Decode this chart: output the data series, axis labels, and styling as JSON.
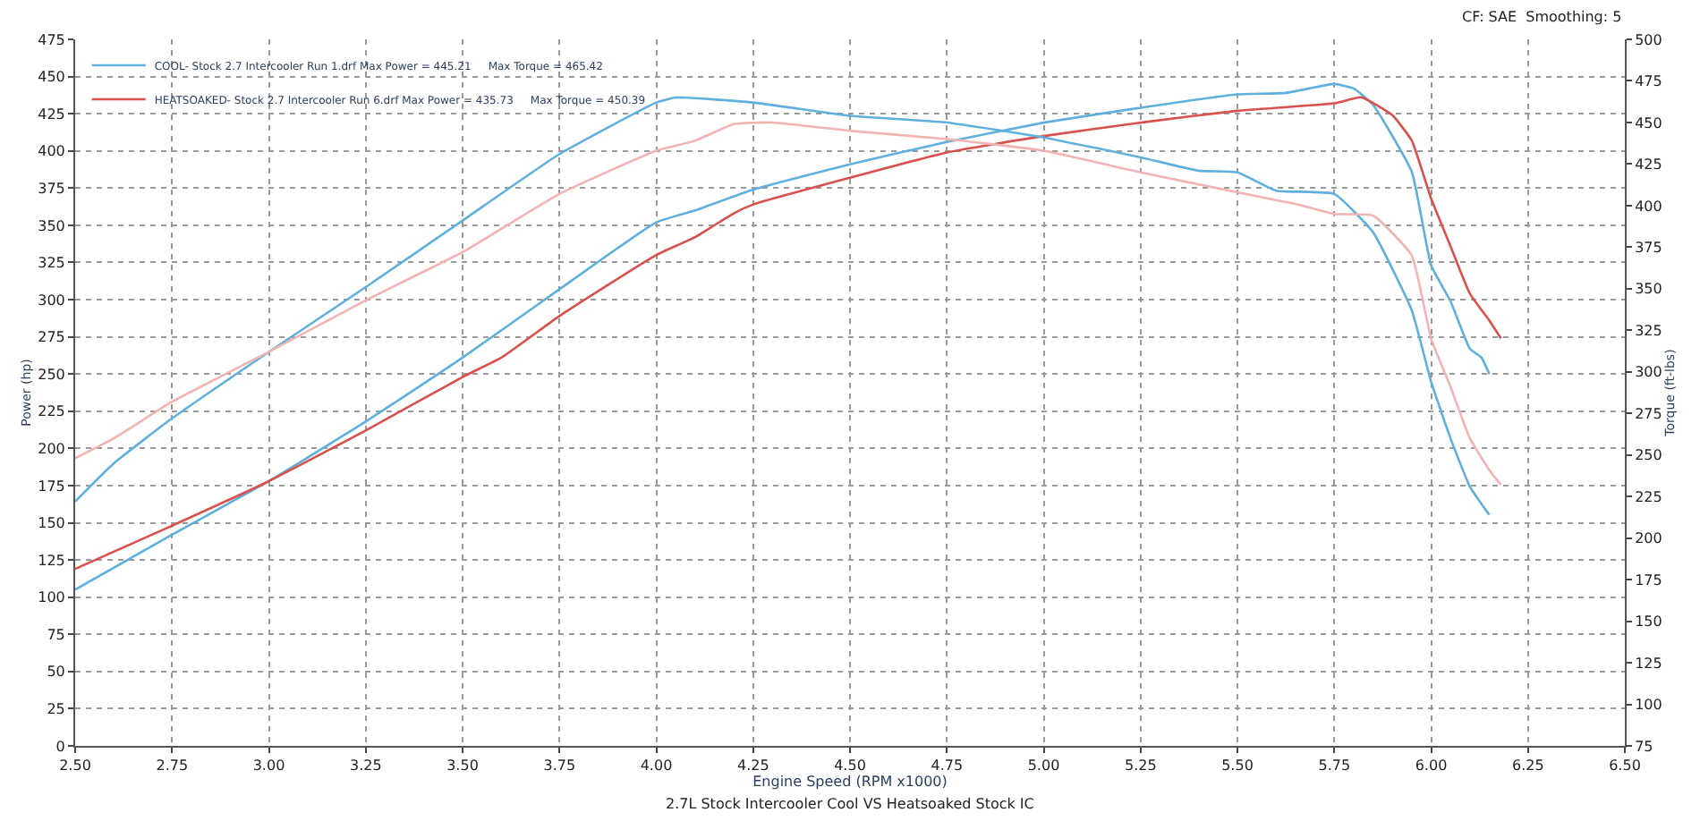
{
  "chart_data": {
    "type": "line",
    "xlabel": "Engine Speed (RPM x1000)",
    "ylabel": "Power (hp)",
    "y2label": "Torque (ft-lbs)",
    "annotations": [
      "CF: SAE  Smoothing: 5",
      "2.7L Stock Intercooler Cool VS Heatsoaked Stock IC"
    ],
    "xlim": [
      2.5,
      6.5
    ],
    "xticks": [
      {
        "value": 2.5,
        "label": "2.50"
      },
      {
        "value": 2.75,
        "label": "2.75"
      },
      {
        "value": 3.0,
        "label": "3.00"
      },
      {
        "value": 3.25,
        "label": "3.25"
      },
      {
        "value": 3.5,
        "label": "3.50"
      },
      {
        "value": 3.75,
        "label": "3.75"
      },
      {
        "value": 4.0,
        "label": "4.00"
      },
      {
        "value": 4.25,
        "label": "4.25"
      },
      {
        "value": 4.5,
        "label": "4.50"
      },
      {
        "value": 4.75,
        "label": "4.75"
      },
      {
        "value": 5.0,
        "label": "5.00"
      },
      {
        "value": 5.25,
        "label": "5.25"
      },
      {
        "value": 5.5,
        "label": "5.50"
      },
      {
        "value": 5.75,
        "label": "5.75"
      },
      {
        "value": 6.0,
        "label": "6.00"
      },
      {
        "value": 6.25,
        "label": "6.25"
      },
      {
        "value": 6.5,
        "label": "6.50"
      }
    ],
    "ylim": [
      0,
      475
    ],
    "yticks": [
      0,
      25,
      50,
      75,
      100,
      125,
      150,
      175,
      200,
      225,
      250,
      275,
      300,
      325,
      350,
      375,
      400,
      425,
      450,
      475
    ],
    "y2lim": [
      75,
      500
    ],
    "y2ticks": [
      75,
      100,
      125,
      150,
      175,
      200,
      225,
      250,
      275,
      300,
      325,
      350,
      375,
      400,
      425,
      450,
      475,
      500
    ],
    "grid": true,
    "legend": "top left",
    "marker": "none",
    "line_style": "solid",
    "series": [
      {
        "name": "COOL- Stock 2.7 Intercooler Run 1.drf Max Power = 445.21     Max Torque = 465.42",
        "color": "#5fb0dd",
        "x": [
          2.5,
          2.75,
          3.0,
          3.25,
          3.5,
          3.75,
          4.0,
          4.1,
          4.25,
          4.5,
          4.75,
          5.0,
          5.25,
          5.5,
          5.625,
          5.75,
          5.8,
          5.85,
          5.95,
          6.0,
          6.05,
          6.1,
          6.13,
          6.15
        ],
        "values": [
          105,
          142,
          178,
          218,
          261,
          307,
          352,
          360,
          374,
          391,
          406,
          419,
          429,
          438,
          439,
          445,
          442,
          431,
          386,
          323,
          299,
          267,
          261,
          250
        ]
      },
      {
        "name": "HEATSOAKED- Stock 2.7 Intercooler Run 6.drf Max Power = 435.73     Max Torque = 450.39",
        "color": "#d9504c",
        "x": [
          2.5,
          2.75,
          3.0,
          3.25,
          3.5,
          3.6,
          3.75,
          4.0,
          4.1,
          4.2,
          4.25,
          4.5,
          4.75,
          5.0,
          5.25,
          5.5,
          5.75,
          5.82,
          5.9,
          5.95,
          6.0,
          6.05,
          6.1,
          6.15,
          6.18
        ],
        "values": [
          119,
          148,
          178,
          212,
          248,
          261,
          289,
          330,
          342,
          358,
          364,
          382,
          399,
          410,
          419,
          427,
          432,
          436,
          424,
          407,
          368,
          336,
          304,
          286,
          274
        ]
      },
      {
        "color": "#5fb0dd",
        "axis": "y2",
        "x": [
          2.5,
          2.6,
          2.75,
          3.0,
          3.25,
          3.5,
          3.75,
          4.0,
          4.05,
          4.25,
          4.5,
          4.75,
          5.0,
          5.25,
          5.4,
          5.5,
          5.6,
          5.75,
          5.85,
          5.95,
          6.0,
          6.05,
          6.1,
          6.15
        ],
        "values": [
          222,
          245,
          272,
          312,
          351,
          391,
          431,
          462,
          465,
          462,
          454,
          450,
          441,
          429,
          421,
          420,
          409,
          407,
          384,
          337,
          294,
          260,
          231,
          214
        ]
      },
      {
        "color": "#f2b3b3",
        "axis": "y2",
        "x": [
          2.5,
          2.6,
          2.75,
          3.0,
          3.25,
          3.5,
          3.75,
          4.0,
          4.1,
          4.2,
          4.3,
          4.5,
          4.75,
          5.0,
          5.25,
          5.5,
          5.65,
          5.75,
          5.85,
          5.95,
          6.0,
          6.05,
          6.1,
          6.15,
          6.18
        ],
        "values": [
          248,
          260,
          282,
          312,
          343,
          372,
          407,
          433,
          439,
          449,
          450,
          445,
          440,
          433,
          420,
          408,
          401,
          395,
          394,
          370,
          320,
          291,
          260,
          241,
          232
        ]
      }
    ]
  }
}
